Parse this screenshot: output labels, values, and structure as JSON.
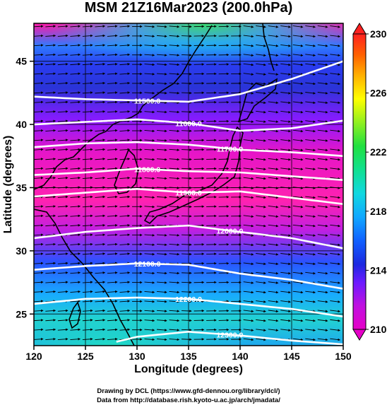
{
  "chart_data": {
    "type": "heatmap",
    "title": "MSM 21Z16Mar2023 (200.0hPa)",
    "xlabel": "Longitude (degrees)",
    "ylabel": "Latitude  (degrees)",
    "xlim": [
      120,
      150
    ],
    "ylim": [
      22.5,
      48
    ],
    "xticks": [
      "120",
      "125",
      "130",
      "135",
      "140",
      "145",
      "150"
    ],
    "yticks": [
      "25",
      "30",
      "35",
      "40",
      "45"
    ],
    "colorbar": {
      "range": [
        210,
        230
      ],
      "ticks": [
        "210",
        "214",
        "218",
        "222",
        "226",
        "230"
      ],
      "colors": [
        "#e600c8",
        "#ff33aa",
        "#8a1aff",
        "#2030e0",
        "#1060ff",
        "#10a8ff",
        "#10e6c8",
        "#10e060",
        "#80f020",
        "#ffff00",
        "#ffb000",
        "#ff6000",
        "#ff2020"
      ]
    },
    "wind_vectors": true,
    "contours": [
      {
        "label": "11500.0",
        "lat_at_lon": [
          [
            120,
            42.2
          ],
          [
            125,
            42.0
          ],
          [
            130,
            41.9
          ],
          [
            135,
            41.8
          ],
          [
            140,
            42.4
          ],
          [
            145,
            43.6
          ],
          [
            150,
            45.0
          ]
        ]
      },
      {
        "label": "11600.0",
        "lat_at_lon": [
          [
            120,
            40.0
          ],
          [
            125,
            40.2
          ],
          [
            130,
            40.4
          ],
          [
            135,
            40.1
          ],
          [
            140,
            39.5
          ],
          [
            145,
            39.7
          ],
          [
            150,
            40.3
          ]
        ]
      },
      {
        "label": "11700.0",
        "lat_at_lon": [
          [
            120,
            38.2
          ],
          [
            125,
            38.5
          ],
          [
            130,
            38.6
          ],
          [
            135,
            38.4
          ],
          [
            140,
            38.0
          ],
          [
            145,
            37.8
          ],
          [
            150,
            37.5
          ]
        ]
      },
      {
        "label": "11800.0",
        "lat_at_lon": [
          [
            120,
            36.0
          ],
          [
            125,
            36.2
          ],
          [
            130,
            36.5
          ],
          [
            135,
            36.3
          ],
          [
            140,
            36.2
          ],
          [
            145,
            35.9
          ],
          [
            150,
            35.6
          ]
        ]
      },
      {
        "label": "11900.0",
        "lat_at_lon": [
          [
            120,
            34.3
          ],
          [
            125,
            34.6
          ],
          [
            130,
            34.9
          ],
          [
            135,
            34.6
          ],
          [
            140,
            34.7
          ],
          [
            145,
            34.2
          ],
          [
            150,
            33.7
          ]
        ]
      },
      {
        "label": "12000.0",
        "lat_at_lon": [
          [
            120,
            31.0
          ],
          [
            125,
            31.5
          ],
          [
            130,
            31.8
          ],
          [
            135,
            32.0
          ],
          [
            140,
            31.5
          ],
          [
            145,
            31.0
          ],
          [
            150,
            30.2
          ]
        ]
      },
      {
        "label": "12100.0",
        "lat_at_lon": [
          [
            120,
            28.5
          ],
          [
            125,
            28.8
          ],
          [
            130,
            29.0
          ],
          [
            135,
            28.9
          ],
          [
            140,
            28.2
          ],
          [
            145,
            27.7
          ],
          [
            150,
            27.0
          ]
        ]
      },
      {
        "label": "12200.0",
        "lat_at_lon": [
          [
            120,
            25.8
          ],
          [
            125,
            26.2
          ],
          [
            130,
            26.3
          ],
          [
            135,
            26.2
          ],
          [
            140,
            25.8
          ],
          [
            145,
            25.4
          ],
          [
            150,
            24.8
          ]
        ]
      },
      {
        "label": "12300.0",
        "lat_at_lon": [
          [
            128,
            22.8
          ],
          [
            130,
            23.2
          ],
          [
            135,
            23.6
          ],
          [
            140,
            23.3
          ],
          [
            145,
            22.9
          ],
          [
            150,
            22.6
          ]
        ]
      }
    ],
    "credits": [
      "Drawing by DCL (https://www.gfd-dennou.org/library/dcl/)",
      "Data from http://database.rish.kyoto-u.ac.jp/arch/jmadata/"
    ]
  }
}
